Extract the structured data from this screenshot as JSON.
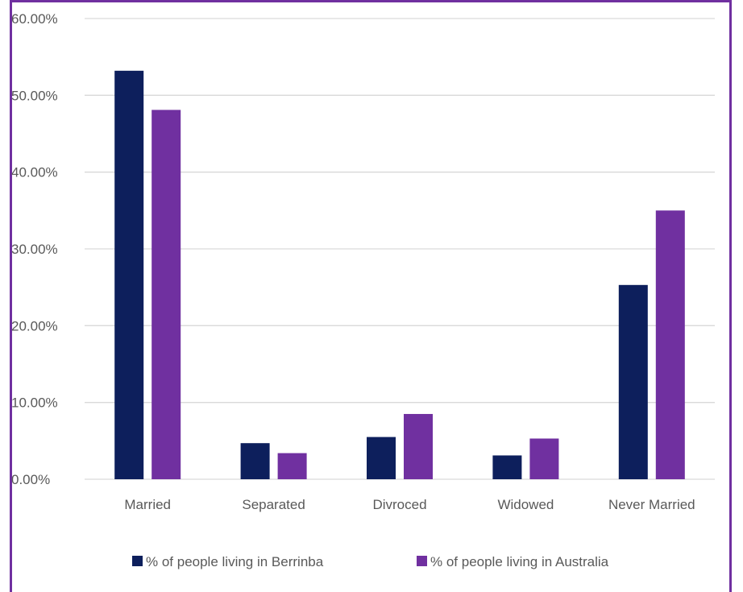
{
  "colors": {
    "series_1": "#0d1f5c",
    "series_2": "#7030a0",
    "frame_border": "#7030a0",
    "gridline": "#d9d9d9",
    "axis_text": "#595959"
  },
  "chart_data": {
    "type": "bar",
    "categories": [
      "Married",
      "Separated",
      "Divroced",
      "Widowed",
      "Never Married"
    ],
    "series": [
      {
        "name": "% of people living in Berrinba",
        "values": [
          53.2,
          4.7,
          5.5,
          3.1,
          25.3
        ]
      },
      {
        "name": "% of people living in Australia",
        "values": [
          48.1,
          3.4,
          8.5,
          5.3,
          35.0
        ]
      }
    ],
    "yticks": [
      "0.00%",
      "10.00%",
      "20.00%",
      "30.00%",
      "40.00%",
      "50.00%",
      "60.00%"
    ],
    "ylim": [
      0,
      60
    ],
    "grid": true,
    "legend_position": "bottom"
  }
}
